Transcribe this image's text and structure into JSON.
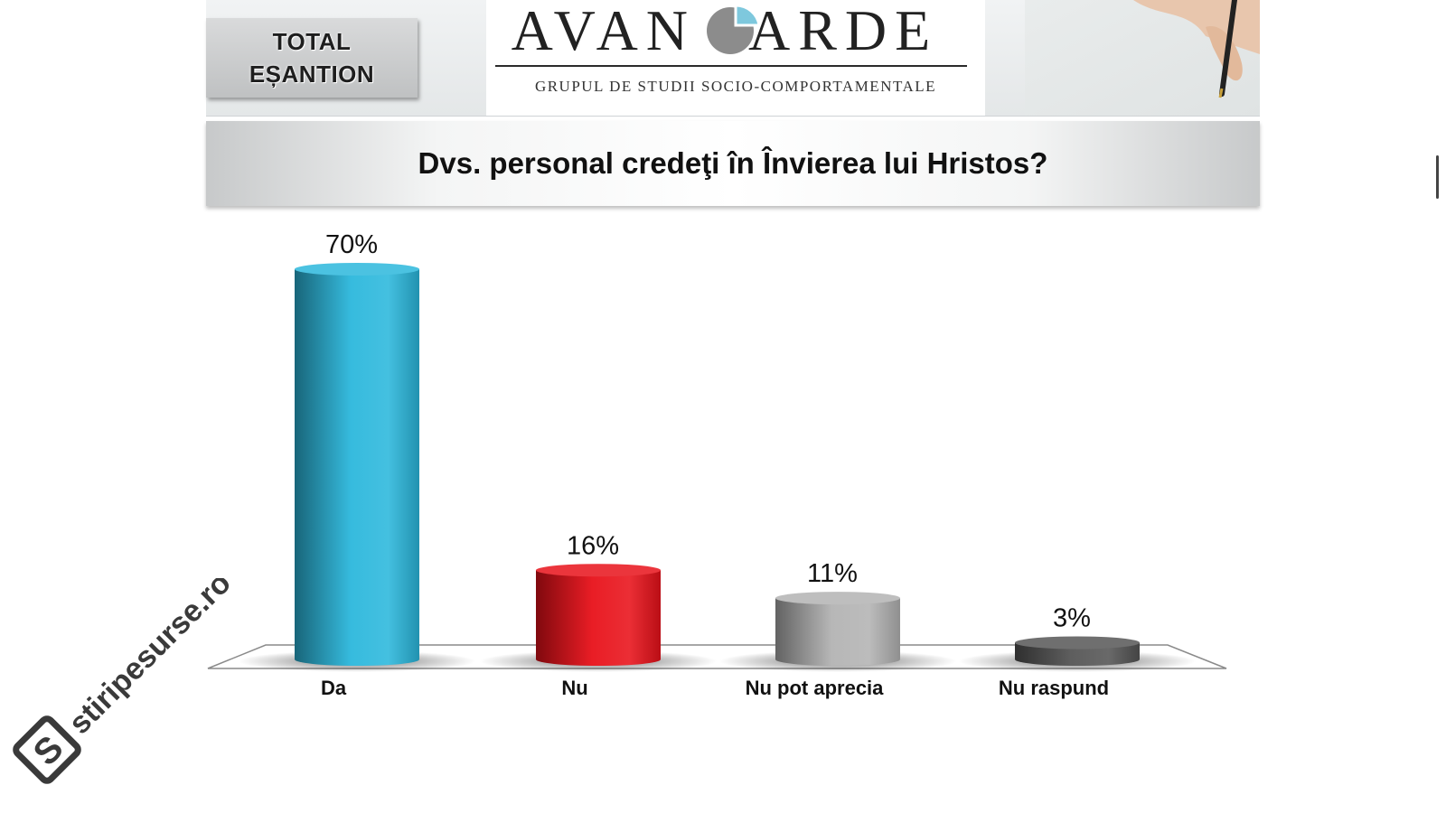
{
  "header": {
    "tag_line1": "TOTAL",
    "tag_line2": "EȘANTION",
    "logo_left": "AVAN",
    "logo_right": "ARDE",
    "logo_tagline": "GRUPUL DE STUDII SOCIO-COMPORTAMENTALE"
  },
  "watermark": "stiripesurse.ro",
  "chart_data": {
    "type": "bar",
    "title": "Dvs. personal credeţi în Învierea lui Hristos?",
    "categories": [
      "Da",
      "Nu",
      "Nu pot aprecia",
      "Nu raspund"
    ],
    "values": [
      70,
      16,
      11,
      3
    ],
    "value_labels": [
      "70%",
      "16%",
      "11%",
      "3%"
    ],
    "colors": [
      "#2bb7dc",
      "#e8111a",
      "#b3b3b3",
      "#555555"
    ],
    "ylim": [
      0,
      70
    ],
    "grid": false,
    "legend": "none"
  }
}
